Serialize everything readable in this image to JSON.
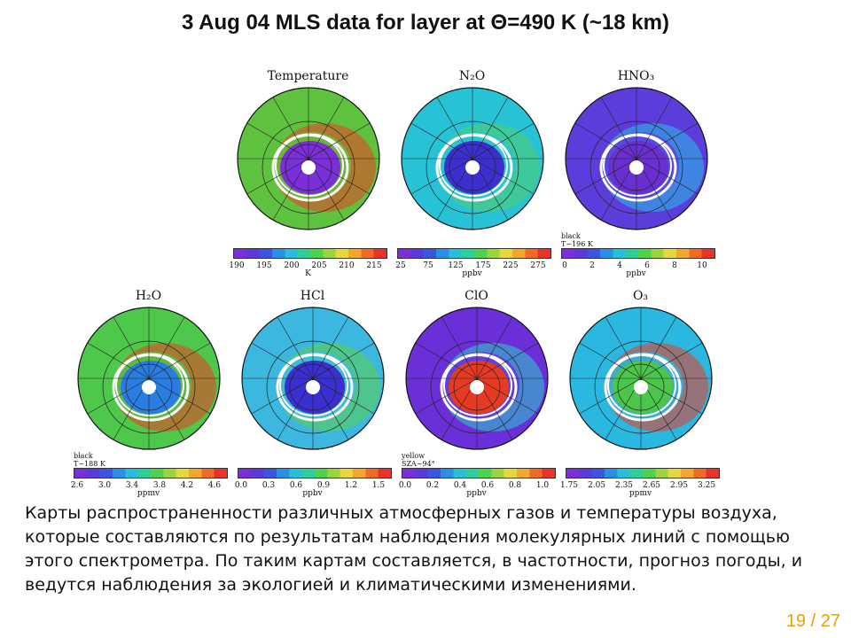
{
  "title": "3 Aug 04 MLS data for layer at Θ=490 K (~18 km)",
  "panels": [
    {
      "title": "Temperature",
      "unit": "K",
      "ticks": [
        "190",
        "195",
        "200",
        "205",
        "210",
        "215"
      ],
      "note": "",
      "base": "#5fc23e",
      "inner": "#7b2fd8",
      "accent": "#ee3c24"
    },
    {
      "title": "N₂O",
      "unit": "ppbv",
      "ticks": [
        "25",
        "75",
        "125",
        "175",
        "225",
        "275"
      ],
      "note": "",
      "base": "#28c2d6",
      "inner": "#3b2fd0",
      "accent": "#50d06a"
    },
    {
      "title": "HNO₃",
      "unit": "ppbv",
      "ticks": [
        "0",
        "2",
        "4",
        "6",
        "8",
        "10"
      ],
      "note": "black\nT~196 K",
      "base": "#5c3ddc",
      "inner": "#6a2fd0",
      "accent": "#29c0e8"
    },
    {
      "title": "H₂O",
      "unit": "ppmv",
      "ticks": [
        "2.6",
        "3.0",
        "3.4",
        "3.8",
        "4.2",
        "4.6"
      ],
      "note": "black\nT~188 K",
      "base": "#4ec84a",
      "inner": "#2a7de0",
      "accent": "#ef3a22"
    },
    {
      "title": "HCl",
      "unit": "ppbv",
      "ticks": [
        "0.0",
        "0.3",
        "0.6",
        "0.9",
        "1.2",
        "1.5"
      ],
      "note": "",
      "base": "#3cb8e0",
      "inner": "#3a2fd0",
      "accent": "#5fd04a"
    },
    {
      "title": "ClO",
      "unit": "ppbv",
      "ticks": [
        "0.0",
        "0.2",
        "0.4",
        "0.6",
        "0.8",
        "1.0"
      ],
      "note": "yellow\nSZA~94°",
      "base": "#6a2fd8",
      "inner": "#e63a22",
      "accent": "#2ad0c8"
    },
    {
      "title": "O₃",
      "unit": "ppmv",
      "ticks": [
        "1.75",
        "2.05",
        "2.35",
        "2.65",
        "2.95",
        "3.25"
      ],
      "note": "",
      "base": "#2ab8e0",
      "inner": "#4cc64a",
      "accent": "#ee3a22"
    }
  ],
  "caption": "Карты распространенности различных атмосферных газов и температуры воздуха, которые составляются по результатам наблюдения молекулярных линий с помощью этого спектрометра. По таким картам составляется, в частотности, прогноз погоды, и ведутся наблюдения за экологией и климатическими изменениями.",
  "pager": {
    "current": "19",
    "total": "27",
    "separator": "/"
  }
}
